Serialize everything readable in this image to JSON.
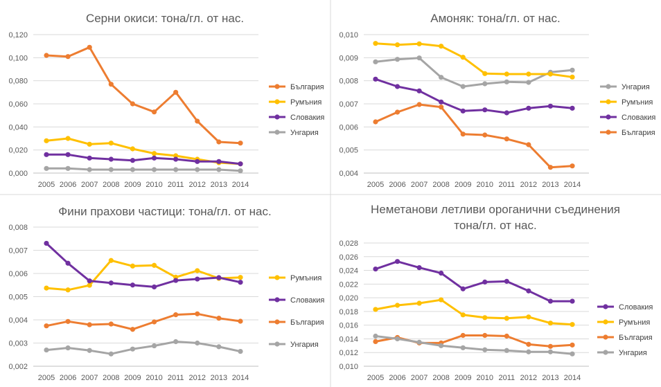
{
  "chart_data": [
    {
      "type": "line",
      "title": "Серни окиси: тона/гл. от нас.",
      "title_lines": [
        "Серни окиси: тона/гл. от нас."
      ],
      "categories": [
        "2005",
        "2006",
        "2007",
        "2008",
        "2009",
        "2010",
        "2011",
        "2012",
        "2013",
        "2014"
      ],
      "ylim": [
        0,
        0.12
      ],
      "ystep": 0.02,
      "ytick_labels": [
        "0,000",
        "0,020",
        "0,040",
        "0,060",
        "0,080",
        "0,100",
        "0,120"
      ],
      "grid": true,
      "legend": "right",
      "series": [
        {
          "name": "България",
          "color": "#ED7D31",
          "values": [
            0.102,
            0.101,
            0.109,
            0.077,
            0.06,
            0.053,
            0.07,
            0.045,
            0.027,
            0.026
          ]
        },
        {
          "name": "Румъния",
          "color": "#FFC000",
          "values": [
            0.028,
            0.03,
            0.025,
            0.026,
            0.021,
            0.017,
            0.015,
            0.012,
            0.009,
            0.008
          ]
        },
        {
          "name": "Словакия",
          "color": "#7030A0",
          "values": [
            0.016,
            0.016,
            0.013,
            0.012,
            0.011,
            0.013,
            0.012,
            0.01,
            0.01,
            0.008
          ]
        },
        {
          "name": "Унгария",
          "color": "#A5A5A5",
          "values": [
            0.004,
            0.004,
            0.003,
            0.003,
            0.003,
            0.003,
            0.003,
            0.003,
            0.003,
            0.002
          ]
        }
      ]
    },
    {
      "type": "line",
      "title": "Амоняк: тона/гл. от нас.",
      "title_lines": [
        "Амоняк: тона/гл. от нас."
      ],
      "categories": [
        "2005",
        "2006",
        "2007",
        "2008",
        "2009",
        "2010",
        "2011",
        "2012",
        "2013",
        "2014"
      ],
      "ylim": [
        0.004,
        0.01
      ],
      "ystep": 0.001,
      "ytick_labels": [
        "0,004",
        "0,005",
        "0,006",
        "0,007",
        "0,008",
        "0,009",
        "0,010"
      ],
      "grid": true,
      "legend": "right",
      "series": [
        {
          "name": "Унгария",
          "color": "#A5A5A5",
          "values": [
            0.00882,
            0.00893,
            0.00899,
            0.00815,
            0.00775,
            0.00787,
            0.00795,
            0.00793,
            0.00837,
            0.00846
          ]
        },
        {
          "name": "Румъния",
          "color": "#FFC000",
          "values": [
            0.00962,
            0.00956,
            0.0096,
            0.0095,
            0.00902,
            0.00831,
            0.00829,
            0.00829,
            0.00829,
            0.00816
          ]
        },
        {
          "name": "Словакия",
          "color": "#7030A0",
          "values": [
            0.00807,
            0.00775,
            0.00756,
            0.00708,
            0.00669,
            0.00674,
            0.00661,
            0.00681,
            0.0069,
            0.00681
          ]
        },
        {
          "name": "България",
          "color": "#ED7D31",
          "values": [
            0.00622,
            0.00664,
            0.00697,
            0.00686,
            0.00569,
            0.00565,
            0.00548,
            0.00523,
            0.00425,
            0.00431
          ]
        }
      ]
    },
    {
      "type": "line",
      "title": "Фини прахови частици: тона/гл. от нас.",
      "title_lines": [
        "Фини прахови частици: тона/гл. от нас."
      ],
      "categories": [
        "2005",
        "2006",
        "2007",
        "2008",
        "2009",
        "2010",
        "2011",
        "2012",
        "2013",
        "2014"
      ],
      "ylim": [
        0.002,
        0.008
      ],
      "ystep": 0.001,
      "ytick_labels": [
        "0,002",
        "0,003",
        "0,004",
        "0,005",
        "0,006",
        "0,007",
        "0,008"
      ],
      "grid": true,
      "legend": "right",
      "series": [
        {
          "name": "Румъния",
          "color": "#FFC000",
          "values": [
            0.00537,
            0.00529,
            0.00549,
            0.00656,
            0.00632,
            0.00635,
            0.00584,
            0.00612,
            0.00579,
            0.00583
          ]
        },
        {
          "name": "Словакия",
          "color": "#7030A0",
          "values": [
            0.0073,
            0.00644,
            0.00568,
            0.00559,
            0.0055,
            0.00542,
            0.0057,
            0.00576,
            0.00582,
            0.00562
          ]
        },
        {
          "name": "България",
          "color": "#ED7D31",
          "values": [
            0.00374,
            0.00393,
            0.00379,
            0.00382,
            0.00359,
            0.00391,
            0.00422,
            0.00426,
            0.00407,
            0.00394
          ]
        },
        {
          "name": "Унгария",
          "color": "#A5A5A5",
          "values": [
            0.0027,
            0.00279,
            0.00268,
            0.00253,
            0.00274,
            0.00288,
            0.00306,
            0.003,
            0.00284,
            0.00264
          ]
        }
      ]
    },
    {
      "type": "line",
      "title": "Неметанови летливи ороганични съединения тона/гл. от нас.",
      "title_lines": [
        "Неметанови летливи ороганични съединения",
        "тона/гл. от нас."
      ],
      "categories": [
        "2005",
        "2006",
        "2007",
        "2008",
        "2009",
        "2010",
        "2011",
        "2012",
        "2013",
        "2014"
      ],
      "ylim": [
        0.01,
        0.028
      ],
      "ystep": 0.002,
      "ytick_labels": [
        "0,010",
        "0,012",
        "0,014",
        "0,016",
        "0,018",
        "0,020",
        "0,022",
        "0,024",
        "0,026",
        "0,028"
      ],
      "grid": true,
      "legend": "right",
      "series": [
        {
          "name": "Словакия",
          "color": "#7030A0",
          "values": [
            0.0242,
            0.0253,
            0.0244,
            0.0236,
            0.0213,
            0.0223,
            0.0224,
            0.021,
            0.0195,
            0.0195
          ]
        },
        {
          "name": "Румъния",
          "color": "#FFC000",
          "values": [
            0.0183,
            0.0189,
            0.0192,
            0.0197,
            0.0175,
            0.0171,
            0.017,
            0.0172,
            0.0163,
            0.0161
          ]
        },
        {
          "name": "България",
          "color": "#ED7D31",
          "values": [
            0.0136,
            0.0142,
            0.0134,
            0.0134,
            0.0145,
            0.0145,
            0.0144,
            0.0132,
            0.0129,
            0.0131
          ]
        },
        {
          "name": "Унгария",
          "color": "#A5A5A5",
          "values": [
            0.0144,
            0.014,
            0.0135,
            0.013,
            0.0127,
            0.0124,
            0.0123,
            0.0121,
            0.0121,
            0.0118
          ]
        }
      ]
    }
  ]
}
